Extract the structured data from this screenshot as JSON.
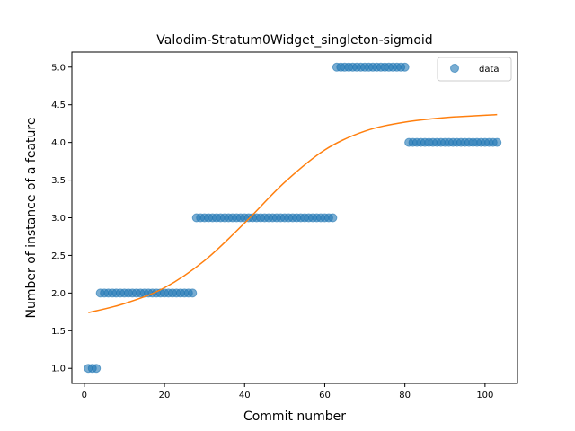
{
  "chart_data": {
    "type": "scatter",
    "title": "Valodim-Stratum0Widget_singleton-sigmoid",
    "xlabel": "Commit number",
    "ylabel": "Number of instance of a feature",
    "xlim": [
      -3.1,
      108.1
    ],
    "ylim": [
      0.8,
      5.2
    ],
    "xticks": [
      0,
      20,
      40,
      60,
      80,
      100
    ],
    "yticks": [
      1.0,
      1.5,
      2.0,
      2.5,
      3.0,
      3.5,
      4.0,
      4.5,
      5.0
    ],
    "xtick_labels": [
      "0",
      "20",
      "40",
      "60",
      "80",
      "100"
    ],
    "ytick_labels": [
      "1.0",
      "1.5",
      "2.0",
      "2.5",
      "3.0",
      "3.5",
      "4.0",
      "4.5",
      "5.0"
    ],
    "legend": {
      "position": "top-right",
      "entries": [
        "data"
      ]
    },
    "series": [
      {
        "name": "data",
        "kind": "scatter",
        "color": "#1f77b4",
        "segments": [
          {
            "x_start": 1,
            "x_end": 3,
            "y": 1.0
          },
          {
            "x_start": 4,
            "x_end": 27,
            "y": 2.0
          },
          {
            "x_start": 28,
            "x_end": 62,
            "y": 3.0
          },
          {
            "x_start": 63,
            "x_end": 80,
            "y": 5.0
          },
          {
            "x_start": 81,
            "x_end": 103,
            "y": 4.0
          }
        ]
      },
      {
        "kind": "line",
        "color": "#ff7f0e",
        "model": "sigmoid",
        "x": [
          1,
          10,
          20,
          30,
          40,
          50,
          60,
          70,
          80,
          90,
          103
        ],
        "y": [
          1.74,
          1.86,
          2.07,
          2.43,
          2.93,
          3.47,
          3.9,
          4.15,
          4.27,
          4.33,
          4.37
        ]
      }
    ],
    "grid": false
  }
}
